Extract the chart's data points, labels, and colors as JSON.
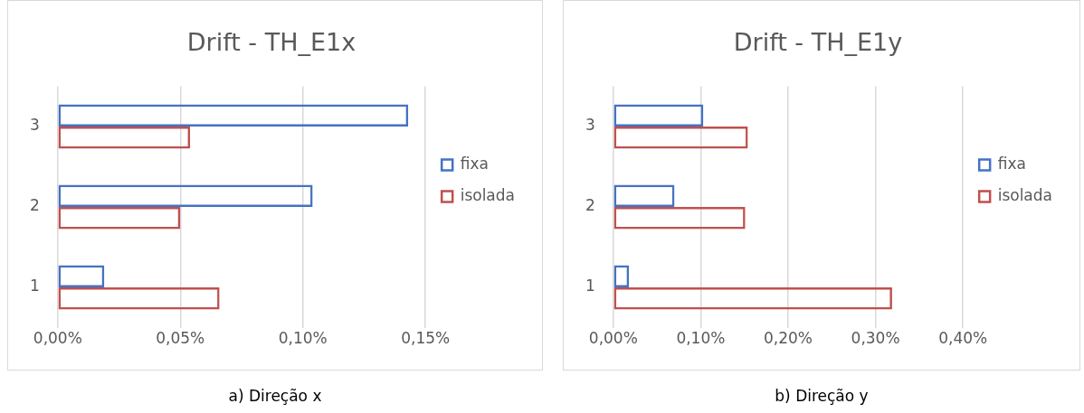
{
  "chart_data": [
    {
      "type": "bar",
      "orientation": "horizontal",
      "title": "Drift - TH_E1x",
      "categories": [
        "3",
        "2",
        "1"
      ],
      "series": [
        {
          "name": "fixa",
          "color": "#4472c4",
          "values": [
            0.143,
            0.104,
            0.019
          ]
        },
        {
          "name": "isolada",
          "color": "#c0504d",
          "values": [
            0.054,
            0.05,
            0.066
          ]
        }
      ],
      "xlim": [
        0,
        0.15
      ],
      "xticks": [
        {
          "value": 0,
          "label": "0,00%"
        },
        {
          "value": 0.05,
          "label": "0,05%"
        },
        {
          "value": 0.1,
          "label": "0,10%"
        },
        {
          "value": 0.15,
          "label": "0,15%"
        }
      ],
      "grid": "x",
      "legend": "right",
      "annotations": [
        "a) Direção x"
      ]
    },
    {
      "type": "bar",
      "orientation": "horizontal",
      "title": "Drift - TH_E1y",
      "categories": [
        "3",
        "2",
        "1"
      ],
      "series": [
        {
          "name": "fixa",
          "color": "#4472c4",
          "values": [
            0.103,
            0.07,
            0.018
          ]
        },
        {
          "name": "isolada",
          "color": "#c0504d",
          "values": [
            0.154,
            0.151,
            0.319
          ]
        }
      ],
      "xlim": [
        0,
        0.4
      ],
      "xticks": [
        {
          "value": 0,
          "label": "0,00%"
        },
        {
          "value": 0.1,
          "label": "0,10%"
        },
        {
          "value": 0.2,
          "label": "0,20%"
        },
        {
          "value": 0.3,
          "label": "0,30%"
        },
        {
          "value": 0.4,
          "label": "0,40%"
        }
      ],
      "grid": "x",
      "legend": "right",
      "annotations": [
        "b) Direção y"
      ]
    }
  ]
}
